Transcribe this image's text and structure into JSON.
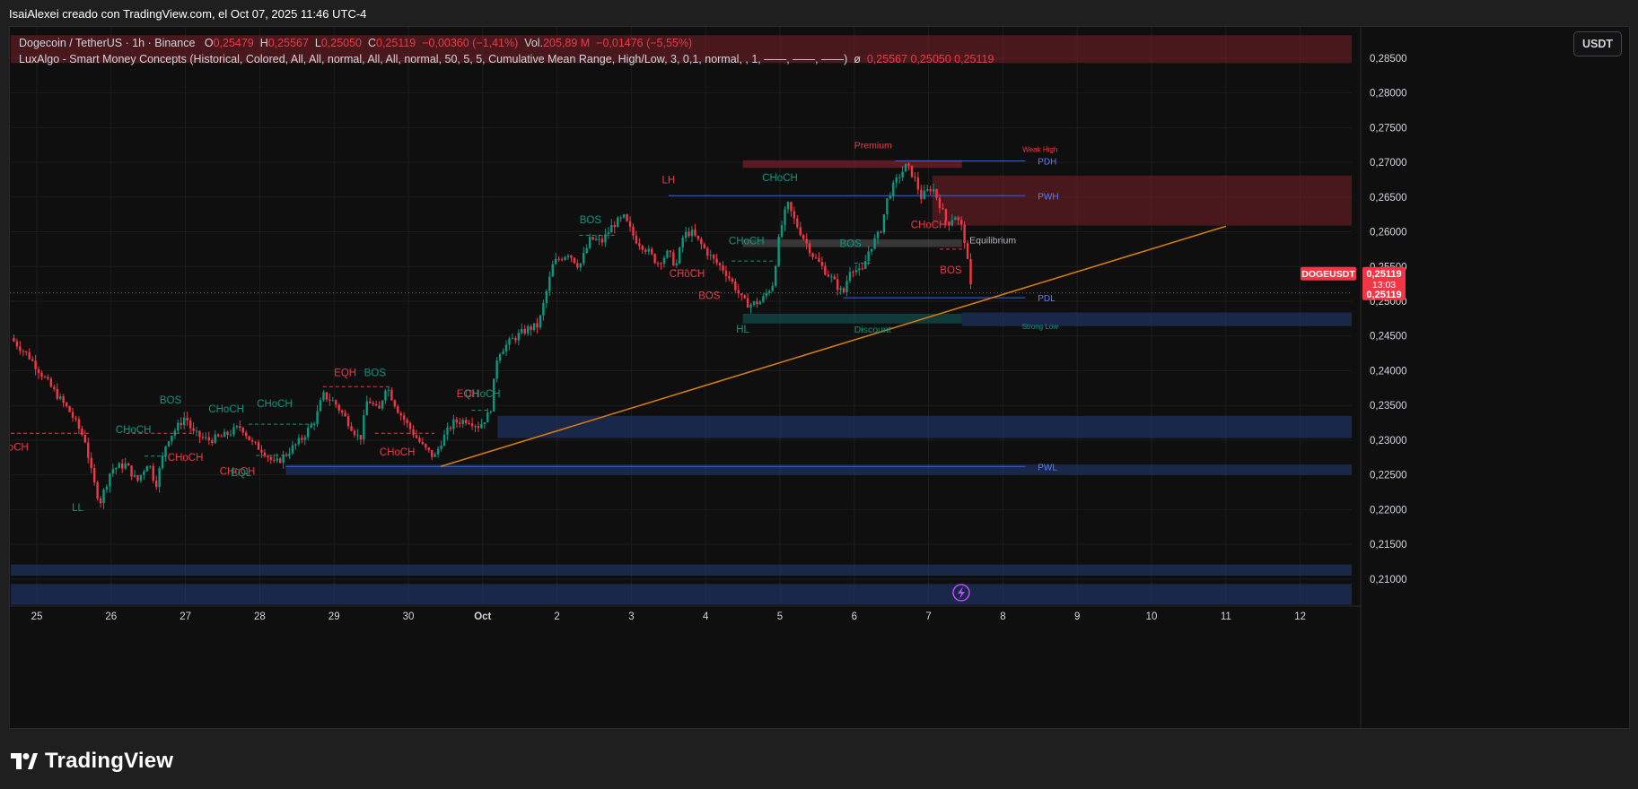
{
  "caption": "IsaiAlexei creado con TradingView.com, el Oct 07, 2025 11:46 UTC-4",
  "legend": {
    "symbol": "Dogecoin / TetherUS · 1h · Binance",
    "o_label": "O",
    "o_value": "0,25479",
    "h_label": "H",
    "h_value": "0,25567",
    "l_label": "L",
    "l_value": "0,25050",
    "c_label": "C",
    "c_value": "0,25119",
    "change": "−0,00360 (−1,41%)",
    "vol_label": "Vol.",
    "vol_value": "205,89 M",
    "vol_change": "−0,01476 (−5,55%)",
    "indicator": "LuxAlgo - Smart Money Concepts (Historical, Colored, All, All, normal, All, All, normal, 50, 5, 5, Cumulative Mean Range, High/Low, 3, 0,1, normal, , 1, ——, ——, ——)",
    "indicator_values_prefix": "ø",
    "indicator_values": "0,25567  0,25050  0,25119"
  },
  "currency_button": "USDT",
  "logo_text": "TradingView",
  "colors": {
    "bull": "#089981",
    "bear": "#f23645",
    "bg": "#0f0f0f",
    "grid": "#1c1c1c",
    "trendline": "#d17a12",
    "level": "#2962ff",
    "demand": "#1a2a4d",
    "supply": "#4a1d24"
  },
  "chart_data": {
    "type": "candlestick",
    "symbol": "DOGEUSDT",
    "interval": "1h",
    "ylim": [
      0.2065,
      0.2895
    ],
    "y_ticks": [
      "0,28500",
      "0,28000",
      "0,27500",
      "0,27000",
      "0,26500",
      "0,26000",
      "0,25500",
      "0,25000",
      "0,24500",
      "0,24000",
      "0,23500",
      "0,23000",
      "0,22500",
      "0,22000",
      "0,21500",
      "0,21000"
    ],
    "y_tick_values": [
      0.285,
      0.28,
      0.275,
      0.27,
      0.265,
      0.26,
      0.255,
      0.25,
      0.245,
      0.24,
      0.235,
      0.23,
      0.225,
      0.22,
      0.215,
      0.21
    ],
    "x_ticks": [
      "25",
      "26",
      "27",
      "28",
      "29",
      "30",
      "Oct",
      "2",
      "3",
      "4",
      "5",
      "6",
      "7",
      "8",
      "9",
      "10",
      "11",
      "12"
    ],
    "x_tick_days": [
      0,
      1,
      2,
      3,
      4,
      5,
      6,
      7,
      8,
      9,
      10,
      11,
      12,
      13,
      14,
      15,
      16,
      17
    ],
    "last_price": "0,25119",
    "last_value": 0.25119,
    "countdown": "13:03",
    "price_tag": "DOGEUSDT",
    "anchors": [
      [
        -0.35,
        0.2447
      ],
      [
        -0.1,
        0.242
      ],
      [
        0.2,
        0.2375
      ],
      [
        0.45,
        0.234
      ],
      [
        0.65,
        0.23
      ],
      [
        0.75,
        0.2245
      ],
      [
        0.85,
        0.221
      ],
      [
        1.0,
        0.2258
      ],
      [
        1.2,
        0.2265
      ],
      [
        1.35,
        0.224
      ],
      [
        1.5,
        0.227
      ],
      [
        1.6,
        0.2235
      ],
      [
        1.75,
        0.23
      ],
      [
        1.9,
        0.232
      ],
      [
        2.0,
        0.2335
      ],
      [
        2.1,
        0.231
      ],
      [
        2.3,
        0.23
      ],
      [
        2.5,
        0.2305
      ],
      [
        2.75,
        0.232
      ],
      [
        2.9,
        0.2295
      ],
      [
        3.05,
        0.2285
      ],
      [
        3.2,
        0.2265
      ],
      [
        3.35,
        0.228
      ],
      [
        3.55,
        0.23
      ],
      [
        3.75,
        0.233
      ],
      [
        3.85,
        0.2365
      ],
      [
        4.0,
        0.2355
      ],
      [
        4.2,
        0.2325
      ],
      [
        4.35,
        0.23
      ],
      [
        4.45,
        0.236
      ],
      [
        4.6,
        0.234
      ],
      [
        4.7,
        0.238
      ],
      [
        4.85,
        0.2345
      ],
      [
        5.0,
        0.232
      ],
      [
        5.2,
        0.229
      ],
      [
        5.35,
        0.2275
      ],
      [
        5.45,
        0.23
      ],
      [
        5.6,
        0.2325
      ],
      [
        5.8,
        0.233
      ],
      [
        5.95,
        0.232
      ],
      [
        6.1,
        0.234
      ],
      [
        6.2,
        0.2425
      ],
      [
        6.4,
        0.2445
      ],
      [
        6.6,
        0.246
      ],
      [
        6.75,
        0.2465
      ],
      [
        6.85,
        0.251
      ],
      [
        6.95,
        0.2555
      ],
      [
        7.15,
        0.257
      ],
      [
        7.3,
        0.255
      ],
      [
        7.45,
        0.259
      ],
      [
        7.6,
        0.2585
      ],
      [
        7.75,
        0.261
      ],
      [
        7.9,
        0.262
      ],
      [
        8.05,
        0.259
      ],
      [
        8.2,
        0.2575
      ],
      [
        8.35,
        0.2555
      ],
      [
        8.5,
        0.257
      ],
      [
        8.6,
        0.255
      ],
      [
        8.7,
        0.2595
      ],
      [
        8.8,
        0.26
      ],
      [
        8.95,
        0.258
      ],
      [
        9.1,
        0.256
      ],
      [
        9.25,
        0.2545
      ],
      [
        9.4,
        0.252
      ],
      [
        9.5,
        0.25
      ],
      [
        9.6,
        0.2495
      ],
      [
        9.75,
        0.25
      ],
      [
        9.9,
        0.2525
      ],
      [
        10.0,
        0.26
      ],
      [
        10.1,
        0.264
      ],
      [
        10.2,
        0.2615
      ],
      [
        10.3,
        0.2595
      ],
      [
        10.45,
        0.2565
      ],
      [
        10.6,
        0.2545
      ],
      [
        10.75,
        0.2525
      ],
      [
        10.85,
        0.251
      ],
      [
        10.95,
        0.255
      ],
      [
        11.1,
        0.254
      ],
      [
        11.2,
        0.2575
      ],
      [
        11.35,
        0.26
      ],
      [
        11.45,
        0.265
      ],
      [
        11.6,
        0.268
      ],
      [
        11.7,
        0.2695
      ],
      [
        11.8,
        0.268
      ],
      [
        11.9,
        0.265
      ],
      [
        12.05,
        0.2665
      ],
      [
        12.15,
        0.264
      ],
      [
        12.25,
        0.261
      ],
      [
        12.35,
        0.2625
      ],
      [
        12.45,
        0.2605
      ],
      [
        12.5,
        0.258
      ],
      [
        12.55,
        0.253
      ],
      [
        12.58,
        0.2512
      ]
    ],
    "levels": [
      {
        "label": "PDH",
        "value": 0.2702,
        "x0": 11.55,
        "x1": 13.3
      },
      {
        "label": "PWH",
        "value": 0.2652,
        "x0": 8.5,
        "x1": 13.3
      },
      {
        "label": "PDL",
        "value": 0.2505,
        "x0": 10.85,
        "x1": 13.3
      },
      {
        "label": "PWL",
        "value": 0.2262,
        "x0": 3.35,
        "x1": 13.3
      }
    ],
    "zones": [
      {
        "kind": "supply",
        "x0": -0.35,
        "x1": 17.8,
        "y0": 0.2883,
        "y1": 0.2843
      },
      {
        "kind": "supply",
        "x0": 12.05,
        "x1": 17.8,
        "y0": 0.2681,
        "y1": 0.2609
      },
      {
        "kind": "premium",
        "x0": 9.5,
        "x1": 12.45,
        "y0": 0.2703,
        "y1": 0.2692
      },
      {
        "kind": "equilibrium",
        "x0": 9.5,
        "x1": 12.45,
        "y0": 0.2589,
        "y1": 0.2578
      },
      {
        "kind": "discount",
        "x0": 9.5,
        "x1": 12.45,
        "y0": 0.2482,
        "y1": 0.2468
      },
      {
        "kind": "demand",
        "x0": 12.45,
        "x1": 17.8,
        "y0": 0.2484,
        "y1": 0.2464
      },
      {
        "kind": "demand",
        "x0": 6.2,
        "x1": 17.8,
        "y0": 0.2335,
        "y1": 0.2303
      },
      {
        "kind": "demand",
        "x0": 3.35,
        "x1": 17.8,
        "y0": 0.2265,
        "y1": 0.225
      },
      {
        "kind": "demand",
        "x0": -0.35,
        "x1": 17.8,
        "y0": 0.2121,
        "y1": 0.2105
      },
      {
        "kind": "demand",
        "x0": -0.35,
        "x1": 17.8,
        "y0": 0.2093,
        "y1": 0.2063
      }
    ],
    "trendline": {
      "x0": 5.43,
      "y0": 0.2262,
      "x1": 16.0,
      "y1": 0.2608
    },
    "structure_lines": [
      {
        "x0": -0.35,
        "x1": 0.7,
        "value": 0.231,
        "color": "bear",
        "dash": true
      },
      {
        "x0": 1.2,
        "x1": 2.1,
        "value": 0.231,
        "color": "bear",
        "dash": true
      },
      {
        "x0": 1.45,
        "x1": 1.75,
        "value": 0.2277,
        "color": "bull",
        "dash": true
      },
      {
        "x0": 2.85,
        "x1": 3.75,
        "value": 0.2323,
        "color": "bull",
        "dash": true
      },
      {
        "x0": 2.95,
        "x1": 3.4,
        "value": 0.2278,
        "color": "bull",
        "dash": true
      },
      {
        "x0": 3.85,
        "x1": 4.75,
        "value": 0.2377,
        "color": "bear",
        "dash": true
      },
      {
        "x0": 4.55,
        "x1": 5.35,
        "value": 0.231,
        "color": "bear",
        "dash": true
      },
      {
        "x0": 5.85,
        "x1": 6.1,
        "value": 0.2343,
        "color": "bull",
        "dash": true
      },
      {
        "x0": 7.3,
        "x1": 7.8,
        "value": 0.2595,
        "color": "bull",
        "dash": true
      },
      {
        "x0": 8.55,
        "x1": 8.9,
        "value": 0.2545,
        "color": "bear",
        "dash": true
      },
      {
        "x0": 9.35,
        "x1": 9.95,
        "value": 0.2558,
        "color": "bull",
        "dash": true
      },
      {
        "x0": 11.0,
        "x1": 11.25,
        "value": 0.2555,
        "color": "bull",
        "dash": true
      },
      {
        "x0": 12.15,
        "x1": 12.45,
        "value": 0.2575,
        "color": "bear",
        "dash": true
      }
    ],
    "labels": [
      {
        "text": "oCH",
        "x": -0.25,
        "value": 0.2285,
        "color": "bear"
      },
      {
        "text": "LL",
        "x": 0.55,
        "value": 0.2198,
        "color": "bull"
      },
      {
        "text": "CHoCH",
        "x": 1.3,
        "value": 0.231,
        "color": "bull"
      },
      {
        "text": "BOS",
        "x": 1.8,
        "value": 0.2353,
        "color": "bull"
      },
      {
        "text": "CHoCH",
        "x": 2.0,
        "value": 0.227,
        "color": "bear"
      },
      {
        "text": "CHoCH",
        "x": 2.55,
        "value": 0.234,
        "color": "bull"
      },
      {
        "text": "CHoCH",
        "x": 2.7,
        "value": 0.225,
        "color": "bear"
      },
      {
        "text": "EQL",
        "x": 2.75,
        "value": 0.2248,
        "color": "bull"
      },
      {
        "text": "CHoCH",
        "x": 3.2,
        "value": 0.2348,
        "color": "bull"
      },
      {
        "text": "EQH",
        "x": 4.15,
        "value": 0.2392,
        "color": "bear"
      },
      {
        "text": "BOS",
        "x": 4.55,
        "value": 0.2392,
        "color": "bull"
      },
      {
        "text": "CHoCH",
        "x": 4.85,
        "value": 0.2278,
        "color": "bear"
      },
      {
        "text": "EQH",
        "x": 5.8,
        "value": 0.2362,
        "color": "bear"
      },
      {
        "text": "CHoCH",
        "x": 6.0,
        "value": 0.2362,
        "color": "bull"
      },
      {
        "text": "BOS",
        "x": 7.45,
        "value": 0.2612,
        "color": "bull"
      },
      {
        "text": "LH",
        "x": 8.5,
        "value": 0.267,
        "color": "bear"
      },
      {
        "text": "CHoCH",
        "x": 8.75,
        "value": 0.2535,
        "color": "bear"
      },
      {
        "text": "BOS",
        "x": 9.05,
        "value": 0.2503,
        "color": "bear"
      },
      {
        "text": "HL",
        "x": 9.5,
        "value": 0.2455,
        "color": "bull"
      },
      {
        "text": "CHoCH",
        "x": 9.55,
        "value": 0.2582,
        "color": "bull"
      },
      {
        "text": "CHoCH",
        "x": 10.0,
        "value": 0.2673,
        "color": "bull"
      },
      {
        "text": "BOS",
        "x": 10.95,
        "value": 0.2578,
        "color": "bull"
      },
      {
        "text": "CHoCH",
        "x": 12.0,
        "value": 0.2605,
        "color": "bear"
      },
      {
        "text": "BOS",
        "x": 12.3,
        "value": 0.254,
        "color": "bear"
      }
    ],
    "zone_labels": [
      {
        "text": "Premium",
        "x": 11.0,
        "value": 0.272,
        "color": "bear"
      },
      {
        "text": "Equilibrium",
        "x": 12.55,
        "value": 0.2583,
        "color": "neutral"
      },
      {
        "text": "Discount",
        "x": 11.0,
        "value": 0.2455,
        "color": "bull"
      },
      {
        "text": "Weak High",
        "x": 13.5,
        "value": 0.2715,
        "color": "bear",
        "small": true
      },
      {
        "text": "Strong Low",
        "x": 13.5,
        "value": 0.246,
        "color": "bull",
        "small": true
      }
    ]
  }
}
